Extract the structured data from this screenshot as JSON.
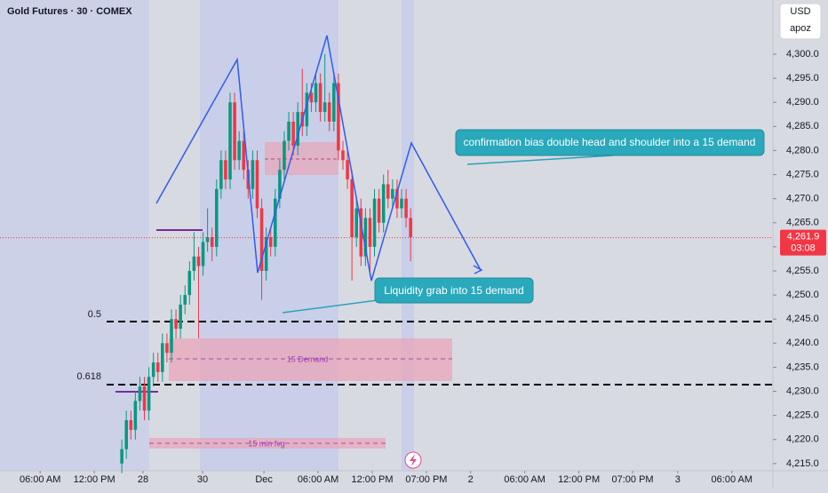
{
  "chart_data": {
    "type": "candlestick",
    "title": "Gold Futures · 30 · COMEX",
    "currency": "USD",
    "user": "apoz",
    "xlim": [
      0,
      171.3
    ],
    "xticks": [
      {
        "value": 8.9,
        "label": "06:00 AM"
      },
      {
        "value": 20.9,
        "label": "12:00 PM"
      },
      {
        "value": 31.7,
        "label": "28"
      },
      {
        "value": 44.9,
        "label": "30"
      },
      {
        "value": 58.5,
        "label": "Dec"
      },
      {
        "value": 70.5,
        "label": "06:00 AM"
      },
      {
        "value": 82.5,
        "label": "12:00 PM"
      },
      {
        "value": 94.5,
        "label": "07:00 PM"
      },
      {
        "value": 104.3,
        "label": "2"
      },
      {
        "value": 116.3,
        "label": "06:00 AM"
      },
      {
        "value": 128.3,
        "label": "12:00 PM"
      },
      {
        "value": 140.2,
        "label": "07:00 PM"
      },
      {
        "value": 150.2,
        "label": "3"
      },
      {
        "value": 162.2,
        "label": "06:00 AM"
      }
    ],
    "ylim": [
      4213.5,
      4311.25
    ],
    "yticks": [
      {
        "value": 4215,
        "label": "4,215.0"
      },
      {
        "value": 4220,
        "label": "4,220.0"
      },
      {
        "value": 4225,
        "label": "4,225.0"
      },
      {
        "value": 4230,
        "label": "4,230.0"
      },
      {
        "value": 4235,
        "label": "4,235.0"
      },
      {
        "value": 4240,
        "label": "4,240.0"
      },
      {
        "value": 4245,
        "label": "4,245.0"
      },
      {
        "value": 4250,
        "label": "4,250.0"
      },
      {
        "value": 4255,
        "label": "4,255.0"
      },
      {
        "value": 4260,
        "label": "4,260.0"
      },
      {
        "value": 4265,
        "label": "4,265.0"
      },
      {
        "value": 4270,
        "label": "4,270.0"
      },
      {
        "value": 4275,
        "label": "4,275.0"
      },
      {
        "value": 4280,
        "label": "4,280.0"
      },
      {
        "value": 4285,
        "label": "4,285.0"
      },
      {
        "value": 4290,
        "label": "4,290.0"
      },
      {
        "value": 4295,
        "label": "4,295.0"
      },
      {
        "value": 4300,
        "label": "4,300.0"
      }
    ],
    "up_color": "#089981",
    "down_color": "#f23645",
    "x": [
      27,
      28,
      29,
      30,
      31,
      32,
      33,
      34,
      35,
      36,
      37,
      38,
      39,
      40,
      41,
      42,
      43,
      44,
      45,
      46,
      47,
      48,
      49,
      50,
      51,
      52,
      53,
      54,
      55,
      56,
      57,
      58,
      59,
      60,
      61,
      62,
      63,
      64,
      65,
      66,
      67,
      68,
      69,
      70,
      71,
      72,
      73,
      74,
      75,
      76,
      77,
      78,
      79,
      80,
      81,
      82,
      83,
      84,
      85,
      86,
      87,
      88,
      89,
      90,
      91
    ],
    "open": [
      4215,
      4218,
      4224,
      4222,
      4228,
      4231,
      4226,
      4233,
      4236,
      4234,
      4240,
      4238,
      4245,
      4243,
      4248,
      4250,
      4255,
      4258,
      4256,
      4261,
      4262,
      4260,
      4272,
      4278,
      4274,
      4290,
      4278,
      4282,
      4276,
      4272,
      4278,
      4268,
      4255,
      4262,
      4260,
      4270,
      4276,
      4282,
      4286,
      4281,
      4288,
      4285,
      4292,
      4290,
      4294,
      4288,
      4290,
      4286,
      4294,
      4280,
      4278,
      4274,
      4262,
      4268,
      4258,
      4266,
      4260,
      4270,
      4265,
      4273,
      4270,
      4272,
      4268,
      4270,
      4266
    ],
    "high": [
      4220,
      4226,
      4226,
      4230,
      4233,
      4233,
      4235,
      4238,
      4238,
      4242,
      4242,
      4247,
      4247,
      4250,
      4252,
      4257,
      4263,
      4260,
      4263,
      4268,
      4264,
      4274,
      4280,
      4280,
      4292,
      4292,
      4284,
      4284,
      4278,
      4280,
      4280,
      4270,
      4264,
      4264,
      4272,
      4278,
      4284,
      4288,
      4288,
      4290,
      4297,
      4294,
      4294,
      4296,
      4296,
      4300,
      4292,
      4296,
      4296,
      4282,
      4280,
      4276,
      4270,
      4270,
      4268,
      4268,
      4272,
      4272,
      4275,
      4276,
      4274,
      4274,
      4272,
      4272,
      4268
    ],
    "low": [
      4213,
      4216,
      4220,
      4220,
      4226,
      4224,
      4224,
      4231,
      4232,
      4232,
      4236,
      4236,
      4241,
      4241,
      4246,
      4248,
      4253,
      4241,
      4254,
      4259,
      4257,
      4258,
      4270,
      4272,
      4272,
      4276,
      4276,
      4274,
      4270,
      4270,
      4266,
      4249,
      4253,
      4258,
      4258,
      4268,
      4274,
      4280,
      4279,
      4279,
      4283,
      4283,
      4288,
      4288,
      4286,
      4286,
      4284,
      4284,
      4278,
      4276,
      4272,
      4253,
      4260,
      4256,
      4256,
      4254,
      4258,
      4263,
      4263,
      4268,
      4268,
      4266,
      4266,
      4264,
      4257
    ],
    "close": [
      4218,
      4224,
      4222,
      4228,
      4231,
      4226,
      4233,
      4236,
      4234,
      4240,
      4238,
      4245,
      4243,
      4248,
      4250,
      4255,
      4258,
      4256,
      4261,
      4262,
      4260,
      4272,
      4278,
      4274,
      4290,
      4278,
      4282,
      4276,
      4272,
      4278,
      4268,
      4255,
      4262,
      4260,
      4270,
      4276,
      4282,
      4286,
      4281,
      4288,
      4285,
      4292,
      4290,
      4294,
      4288,
      4290,
      4286,
      4294,
      4280,
      4278,
      4274,
      4262,
      4268,
      4258,
      4266,
      4260,
      4270,
      4265,
      4273,
      4270,
      4272,
      4268,
      4270,
      4266,
      4262
    ],
    "last_price": {
      "value": 4261.9,
      "label": "4,261.9"
    },
    "countdown": "03:08",
    "annotations": {
      "callout_top": "confirmation bias double head and shoulder into a 15 demand",
      "callout_bottom": "Liquidity grab into 15 demand",
      "fib_05": "0.5",
      "fib_0618": "0.618",
      "demand_zone": "15 Demand",
      "fvg_zone": "15 min fvg"
    }
  }
}
